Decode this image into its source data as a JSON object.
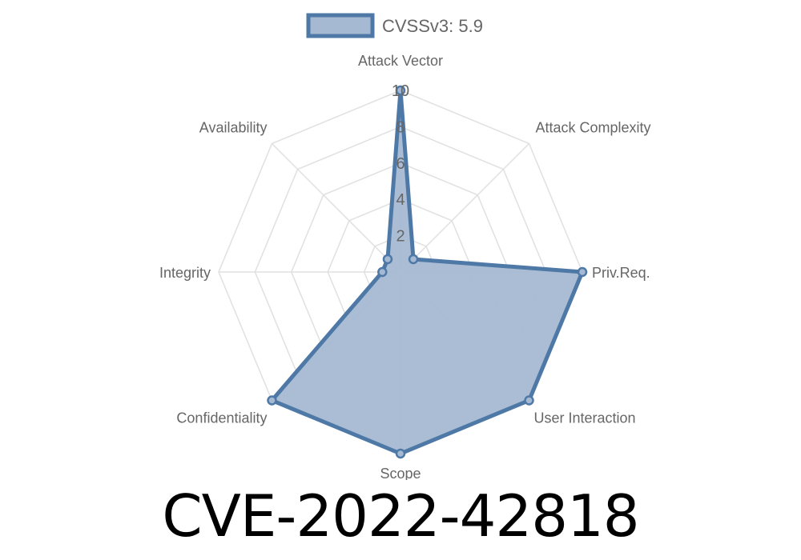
{
  "chart_data": {
    "type": "radar",
    "legend": {
      "label": "CVSSv3: 5.9",
      "position": "top"
    },
    "axes": [
      "Attack Vector",
      "Attack Complexity",
      "Priv.Req.",
      "User Interaction",
      "Scope",
      "Confidentiality",
      "Integrity",
      "Availability"
    ],
    "series": [
      {
        "name": "CVSSv3: 5.9",
        "values": [
          10,
          1,
          10,
          10,
          10,
          10,
          1,
          1
        ]
      }
    ],
    "range": [
      0,
      10
    ],
    "ticks": [
      "2",
      "4",
      "6",
      "8",
      "10"
    ],
    "grid": true,
    "colors": {
      "line": "#4e79a7",
      "fill": "#a5b9d3",
      "grid": "#e0e0e0",
      "label": "#666666"
    }
  },
  "caption": "CVE-2022-42818"
}
